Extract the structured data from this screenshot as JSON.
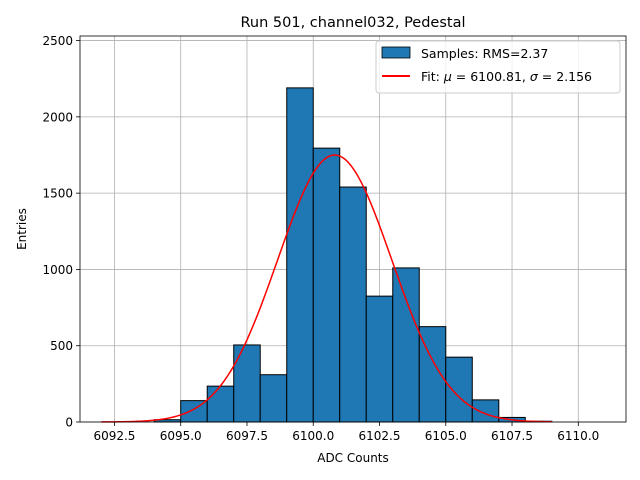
{
  "chart_data": {
    "type": "bar",
    "title": "Run 501, channel032, Pedestal",
    "xlabel": "ADC Counts",
    "ylabel": "Entries",
    "xlim": [
      6091.2,
      6111.8
    ],
    "ylim": [
      0,
      2530
    ],
    "grid": true,
    "legend_position": "top-right",
    "x_ticks": [
      {
        "value": 6092.5,
        "label": "6092.5"
      },
      {
        "value": 6095.0,
        "label": "6095.0"
      },
      {
        "value": 6097.5,
        "label": "6097.5"
      },
      {
        "value": 6100.0,
        "label": "6100.0"
      },
      {
        "value": 6102.5,
        "label": "6102.5"
      },
      {
        "value": 6105.0,
        "label": "6105.0"
      },
      {
        "value": 6107.5,
        "label": "6107.5"
      },
      {
        "value": 6110.0,
        "label": "6110.0"
      }
    ],
    "y_ticks": [
      {
        "value": 0,
        "label": "0"
      },
      {
        "value": 500,
        "label": "500"
      },
      {
        "value": 1000,
        "label": "1000"
      },
      {
        "value": 1500,
        "label": "1500"
      },
      {
        "value": 2000,
        "label": "2000"
      },
      {
        "value": 2500,
        "label": "2500"
      }
    ],
    "histogram": {
      "name": "Samples: RMS=2.37",
      "color": "#1f77b4",
      "edge_color": "#000000",
      "bins": [
        {
          "start": 6094,
          "end": 6095,
          "count": 15
        },
        {
          "start": 6095,
          "end": 6096,
          "count": 140
        },
        {
          "start": 6096,
          "end": 6097,
          "count": 235
        },
        {
          "start": 6097,
          "end": 6098,
          "count": 505
        },
        {
          "start": 6098,
          "end": 6099,
          "count": 310
        },
        {
          "start": 6099,
          "end": 6100,
          "count": 2190
        },
        {
          "start": 6100,
          "end": 6101,
          "count": 1795
        },
        {
          "start": 6101,
          "end": 6102,
          "count": 1540
        },
        {
          "start": 6102,
          "end": 6103,
          "count": 825
        },
        {
          "start": 6103,
          "end": 6104,
          "count": 1010
        },
        {
          "start": 6104,
          "end": 6105,
          "count": 625
        },
        {
          "start": 6105,
          "end": 6106,
          "count": 425
        },
        {
          "start": 6106,
          "end": 6107,
          "count": 145
        },
        {
          "start": 6107,
          "end": 6108,
          "count": 30
        },
        {
          "start": 6108,
          "end": 6109,
          "count": 5
        }
      ]
    },
    "fit": {
      "name_prefix": "Fit: ",
      "mu_symbol": "μ",
      "mu_text": " = 6100.81, ",
      "sigma_symbol": "σ",
      "sigma_text": " = 2.156",
      "color": "#ff0000",
      "mu": 6100.81,
      "sigma": 2.156,
      "amplitude": 1750,
      "x_range": [
        6092,
        6109
      ]
    }
  }
}
